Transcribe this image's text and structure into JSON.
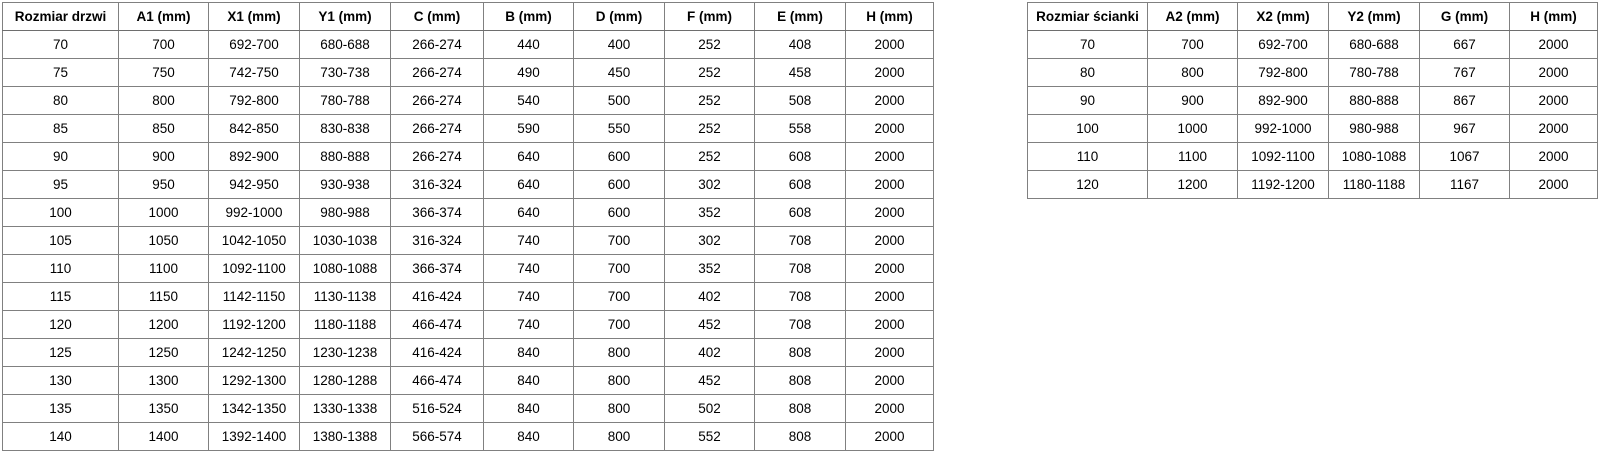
{
  "door_table": {
    "name": "door-size-table",
    "headers": [
      "Rozmiar drzwi",
      "A1 (mm)",
      "X1 (mm)",
      "Y1 (mm)",
      "C (mm)",
      "B (mm)",
      "D (mm)",
      "F (mm)",
      "E (mm)",
      "H (mm)"
    ],
    "rows": [
      [
        "70",
        "700",
        "692-700",
        "680-688",
        "266-274",
        "440",
        "400",
        "252",
        "408",
        "2000"
      ],
      [
        "75",
        "750",
        "742-750",
        "730-738",
        "266-274",
        "490",
        "450",
        "252",
        "458",
        "2000"
      ],
      [
        "80",
        "800",
        "792-800",
        "780-788",
        "266-274",
        "540",
        "500",
        "252",
        "508",
        "2000"
      ],
      [
        "85",
        "850",
        "842-850",
        "830-838",
        "266-274",
        "590",
        "550",
        "252",
        "558",
        "2000"
      ],
      [
        "90",
        "900",
        "892-900",
        "880-888",
        "266-274",
        "640",
        "600",
        "252",
        "608",
        "2000"
      ],
      [
        "95",
        "950",
        "942-950",
        "930-938",
        "316-324",
        "640",
        "600",
        "302",
        "608",
        "2000"
      ],
      [
        "100",
        "1000",
        "992-1000",
        "980-988",
        "366-374",
        "640",
        "600",
        "352",
        "608",
        "2000"
      ],
      [
        "105",
        "1050",
        "1042-1050",
        "1030-1038",
        "316-324",
        "740",
        "700",
        "302",
        "708",
        "2000"
      ],
      [
        "110",
        "1100",
        "1092-1100",
        "1080-1088",
        "366-374",
        "740",
        "700",
        "352",
        "708",
        "2000"
      ],
      [
        "115",
        "1150",
        "1142-1150",
        "1130-1138",
        "416-424",
        "740",
        "700",
        "402",
        "708",
        "2000"
      ],
      [
        "120",
        "1200",
        "1192-1200",
        "1180-1188",
        "466-474",
        "740",
        "700",
        "452",
        "708",
        "2000"
      ],
      [
        "125",
        "1250",
        "1242-1250",
        "1230-1238",
        "416-424",
        "840",
        "800",
        "402",
        "808",
        "2000"
      ],
      [
        "130",
        "1300",
        "1292-1300",
        "1280-1288",
        "466-474",
        "840",
        "800",
        "452",
        "808",
        "2000"
      ],
      [
        "135",
        "1350",
        "1342-1350",
        "1330-1338",
        "516-524",
        "840",
        "800",
        "502",
        "808",
        "2000"
      ],
      [
        "140",
        "1400",
        "1392-1400",
        "1380-1388",
        "566-574",
        "840",
        "800",
        "552",
        "808",
        "2000"
      ]
    ]
  },
  "wall_table": {
    "name": "wall-size-table",
    "headers": [
      "Rozmiar ścianki",
      "A2 (mm)",
      "X2 (mm)",
      "Y2 (mm)",
      "G (mm)",
      "H (mm)"
    ],
    "rows": [
      [
        "70",
        "700",
        "692-700",
        "680-688",
        "667",
        "2000"
      ],
      [
        "80",
        "800",
        "792-800",
        "780-788",
        "767",
        "2000"
      ],
      [
        "90",
        "900",
        "892-900",
        "880-888",
        "867",
        "2000"
      ],
      [
        "100",
        "1000",
        "992-1000",
        "980-988",
        "967",
        "2000"
      ],
      [
        "110",
        "1100",
        "1092-1100",
        "1080-1088",
        "1067",
        "2000"
      ],
      [
        "120",
        "1200",
        "1192-1200",
        "1180-1188",
        "1167",
        "2000"
      ]
    ]
  },
  "colors": {
    "background": "#ffffff",
    "border": "#808080",
    "text": "#000000"
  }
}
